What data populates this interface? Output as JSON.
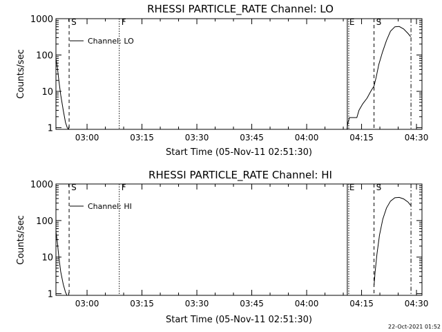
{
  "chart_data": [
    {
      "type": "line",
      "title": "RHESSI PARTICLE_RATE Channel: LO",
      "xlabel": "Start Time (05-Nov-11 02:51:30)",
      "ylabel": "Counts/sec",
      "legend": "Channel: LO",
      "legend_position": "top-left",
      "log_y": true,
      "xlim_minutes_after_start": [
        0,
        100
      ],
      "ylim": [
        0.9,
        1000
      ],
      "x_ticks": [
        "03:00",
        "03:15",
        "03:30",
        "03:45",
        "04:00",
        "04:15",
        "04:30"
      ],
      "y_ticks": [
        "1",
        "10",
        "100",
        "1000"
      ],
      "markers": [
        {
          "label": "S",
          "style": "dashed",
          "x": 3.6
        },
        {
          "label": "F",
          "style": "dotted",
          "x": 17.3
        },
        {
          "label": "E",
          "style": "solid",
          "x": 79.6
        },
        {
          "label": "",
          "style": "dotted",
          "x": 80.0
        },
        {
          "label": "S",
          "style": "dashed",
          "x": 86.9
        },
        {
          "label": "",
          "style": "dashdot",
          "x": 97.0
        }
      ],
      "segments": [
        [
          [
            0.0,
            80
          ],
          [
            0.4,
            45
          ],
          [
            0.8,
            20
          ],
          [
            1.3,
            8
          ],
          [
            2.0,
            3
          ],
          [
            2.6,
            1.4
          ],
          [
            3.1,
            1.0
          ],
          [
            3.4,
            0.9
          ]
        ],
        [
          [
            79.5,
            0.9
          ],
          [
            79.8,
            1.4
          ],
          [
            80.2,
            1.9
          ],
          [
            82.2,
            1.9
          ],
          [
            82.8,
            3.0
          ],
          [
            83.8,
            4.5
          ],
          [
            85.0,
            6.5
          ],
          [
            86.0,
            10
          ],
          [
            86.9,
            14
          ],
          [
            87.5,
            25
          ],
          [
            88.2,
            55
          ],
          [
            89.2,
            120
          ],
          [
            90.3,
            250
          ],
          [
            91.4,
            450
          ],
          [
            92.6,
            600
          ],
          [
            93.8,
            610
          ],
          [
            95.0,
            520
          ],
          [
            96.2,
            390
          ],
          [
            96.9,
            320
          ]
        ]
      ]
    },
    {
      "type": "line",
      "title": "RHESSI PARTICLE_RATE Channel: HI",
      "xlabel": "Start Time (05-Nov-11 02:51:30)",
      "ylabel": "Counts/sec",
      "legend": "Channel: HI",
      "legend_position": "top-left",
      "log_y": true,
      "xlim_minutes_after_start": [
        0,
        100
      ],
      "ylim": [
        0.9,
        1000
      ],
      "x_ticks": [
        "03:00",
        "03:15",
        "03:30",
        "03:45",
        "04:00",
        "04:15",
        "04:30"
      ],
      "y_ticks": [
        "1",
        "10",
        "100",
        "1000"
      ],
      "markers": [
        {
          "label": "S",
          "style": "dashed",
          "x": 3.6
        },
        {
          "label": "F",
          "style": "dotted",
          "x": 17.3
        },
        {
          "label": "E",
          "style": "solid",
          "x": 79.6
        },
        {
          "label": "",
          "style": "dotted",
          "x": 80.0
        },
        {
          "label": "S",
          "style": "dashed",
          "x": 86.9
        },
        {
          "label": "",
          "style": "dashdot",
          "x": 97.0
        }
      ],
      "segments": [
        [
          [
            0.0,
            50
          ],
          [
            0.4,
            25
          ],
          [
            0.8,
            10
          ],
          [
            1.3,
            4
          ],
          [
            2.0,
            1.8
          ],
          [
            2.6,
            1.1
          ],
          [
            3.0,
            0.9
          ]
        ],
        [
          [
            86.9,
            1.7
          ],
          [
            87.2,
            4
          ],
          [
            87.7,
            12
          ],
          [
            88.4,
            40
          ],
          [
            89.3,
            110
          ],
          [
            90.3,
            220
          ],
          [
            91.4,
            340
          ],
          [
            92.6,
            420
          ],
          [
            93.8,
            430
          ],
          [
            95.0,
            390
          ],
          [
            96.2,
            320
          ],
          [
            96.9,
            260
          ]
        ]
      ]
    }
  ],
  "footer": {
    "timestamp": "22-Oct-2021 01:52"
  }
}
